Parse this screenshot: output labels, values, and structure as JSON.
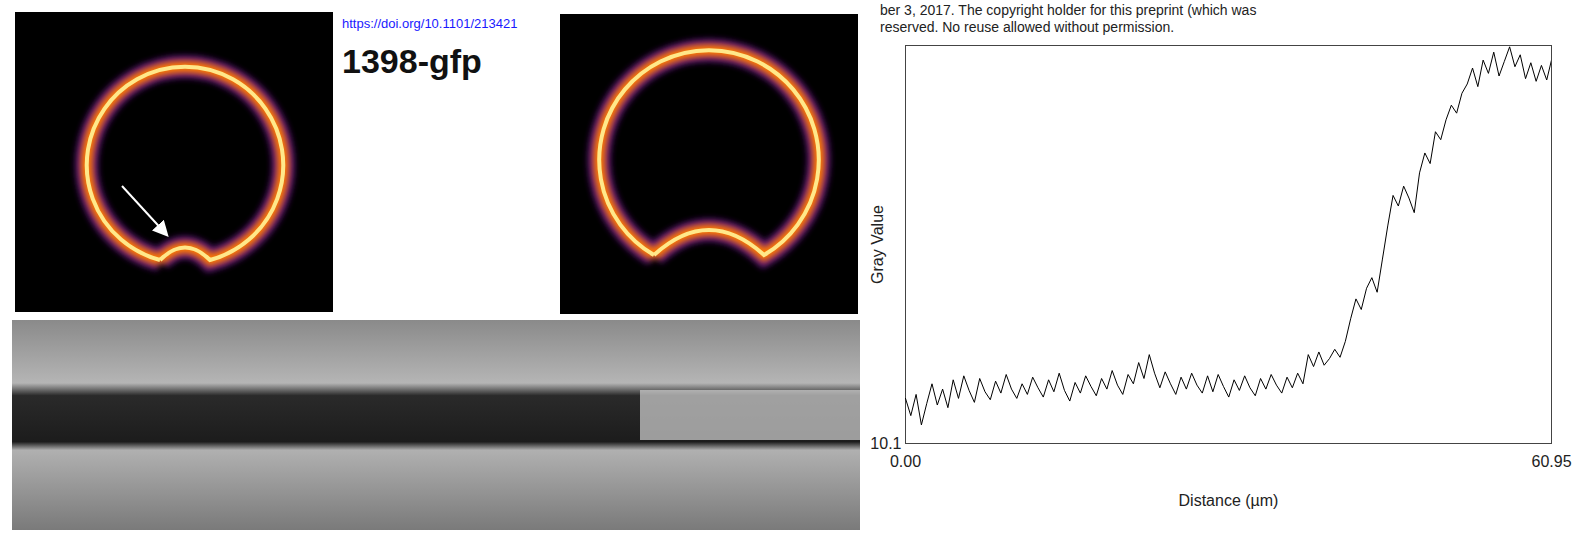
{
  "header": {
    "link": "https://doi.org/10.1101/213421",
    "line1": "ber 3, 2017. The copyright holder for this preprint (which was",
    "line2": "reserved. No reuse allowed without permission.",
    "label": "1398-gfp"
  },
  "chart_data": {
    "type": "line",
    "x_label": "Distance (µm)",
    "y_label": "Gray Value",
    "color": "#000000",
    "xlim": [
      0,
      60.95
    ],
    "xticks": [
      {
        "value": 0,
        "label": "0.00"
      },
      {
        "value": 60.95,
        "label": "60.95"
      }
    ],
    "ylim": [
      10.1,
      40.1
    ],
    "yticks": [
      10.1
    ],
    "grid": false,
    "x": [
      0,
      0.5,
      1,
      1.5,
      2,
      2.5,
      3,
      3.5,
      4,
      4.5,
      5,
      5.5,
      6,
      6.5,
      7,
      7.5,
      8,
      8.5,
      9,
      9.5,
      10,
      10.5,
      11,
      11.5,
      12,
      12.5,
      13,
      13.5,
      14,
      14.5,
      15,
      15.5,
      16,
      16.5,
      17,
      17.5,
      18,
      18.5,
      19,
      19.5,
      20,
      20.5,
      21,
      21.5,
      22,
      22.5,
      23,
      23.5,
      24,
      24.5,
      25,
      25.5,
      26,
      26.5,
      27,
      27.5,
      28,
      28.5,
      29,
      29.5,
      30,
      30.5,
      31,
      31.5,
      32,
      32.5,
      33,
      33.5,
      34,
      34.5,
      35,
      35.5,
      36,
      36.5,
      37,
      37.5,
      38,
      38.5,
      39,
      39.5,
      40,
      40.5,
      41,
      41.5,
      42,
      42.5,
      43,
      43.5,
      44,
      44.5,
      45,
      45.5,
      46,
      46.5,
      47,
      47.5,
      48,
      48.5,
      49,
      49.5,
      50,
      50.5,
      51,
      51.5,
      52,
      52.5,
      53,
      53.5,
      54,
      54.5,
      55,
      55.5,
      56,
      56.5,
      57,
      57.5,
      58,
      58.5,
      59,
      59.5,
      60,
      60.5,
      60.95
    ],
    "values": [
      13.5,
      12.2,
      13.8,
      11.5,
      13.1,
      14.6,
      13.0,
      14.2,
      12.8,
      14.9,
      13.5,
      15.2,
      14.1,
      13.2,
      15.0,
      14.0,
      13.4,
      14.8,
      13.9,
      15.3,
      14.2,
      13.5,
      14.6,
      13.8,
      15.1,
      14.3,
      13.6,
      14.9,
      14.0,
      15.4,
      14.1,
      13.3,
      14.7,
      13.9,
      15.2,
      14.4,
      13.7,
      15.0,
      14.2,
      15.6,
      14.5,
      13.8,
      15.3,
      14.6,
      16.2,
      15.0,
      16.8,
      15.4,
      14.3,
      15.5,
      14.6,
      13.8,
      15.1,
      14.2,
      15.4,
      14.5,
      13.9,
      15.2,
      14.0,
      15.3,
      14.4,
      13.6,
      14.9,
      14.1,
      15.2,
      14.3,
      13.7,
      15.0,
      14.2,
      15.3,
      14.5,
      13.9,
      15.1,
      14.3,
      15.4,
      14.6,
      16.8,
      15.9,
      17.0,
      16.0,
      16.5,
      17.2,
      16.6,
      17.8,
      19.5,
      21.0,
      20.2,
      21.8,
      22.6,
      21.5,
      24.0,
      26.5,
      28.8,
      28.0,
      29.5,
      28.6,
      27.5,
      30.5,
      32.0,
      31.2,
      33.6,
      33.0,
      34.5,
      35.6,
      35.0,
      36.5,
      37.2,
      38.4,
      37.0,
      39.0,
      38.0,
      39.6,
      37.8,
      38.9,
      40.0,
      38.5,
      39.4,
      37.6,
      38.8,
      37.4,
      38.6,
      37.5,
      39.0
    ]
  }
}
